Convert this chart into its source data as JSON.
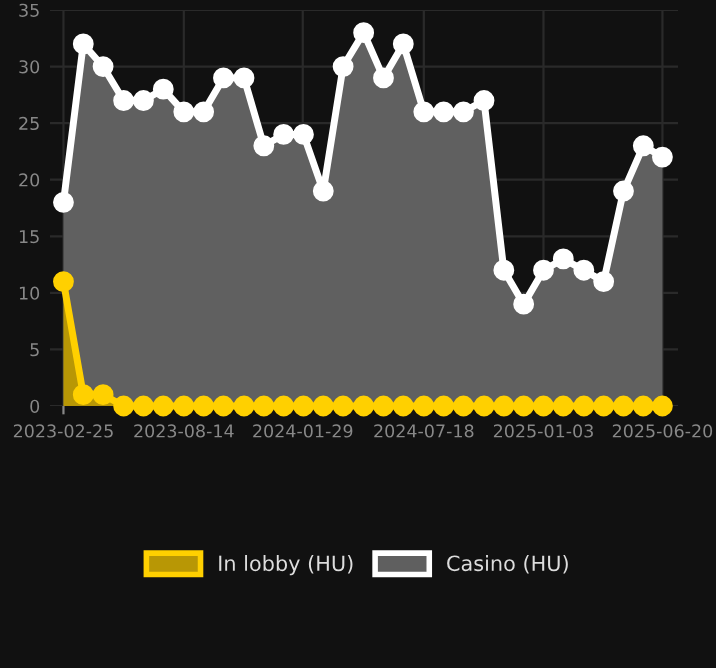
{
  "chart_data": {
    "type": "area",
    "x": [
      "2023-02-25",
      "2023-03-25",
      "2023-04-22",
      "2023-05-21",
      "2023-06-18",
      "2023-07-16",
      "2023-08-14",
      "2023-09-11",
      "2023-10-09",
      "2023-11-07",
      "2023-12-05",
      "2024-01-02",
      "2024-01-30",
      "2024-02-27",
      "2024-03-26",
      "2024-04-24",
      "2024-05-22",
      "2024-06-19",
      "2024-07-18",
      "2024-08-15",
      "2024-09-12",
      "2024-10-11",
      "2024-11-08",
      "2024-12-06",
      "2025-01-03",
      "2025-01-31",
      "2025-03-01",
      "2025-03-29",
      "2025-04-26",
      "2025-05-24",
      "2025-06-20"
    ],
    "series": [
      {
        "name": "In lobby (HU)",
        "color": "#ffd000",
        "values": [
          11,
          1,
          1,
          0,
          0,
          0,
          0,
          0,
          0,
          0,
          0,
          0,
          0,
          0,
          0,
          0,
          0,
          0,
          0,
          0,
          0,
          0,
          0,
          0,
          0,
          0,
          0,
          0,
          0,
          0,
          0
        ]
      },
      {
        "name": "Casino (HU)",
        "color": "#ffffff",
        "values": [
          18,
          32,
          30,
          27,
          27,
          28,
          26,
          26,
          29,
          29,
          23,
          24,
          24,
          19,
          30,
          33,
          29,
          32,
          26,
          26,
          26,
          27,
          12,
          9,
          12,
          13,
          12,
          11,
          19,
          23,
          22
        ]
      }
    ],
    "xlim": [
      "2023-02-06",
      "2025-07-12"
    ],
    "xticks": [
      "2023-02-25",
      "2023-08-14",
      "2024-01-29",
      "2024-07-18",
      "2025-01-03",
      "2025-06-20"
    ],
    "ylim": [
      0,
      35
    ],
    "yticks": [
      0,
      5,
      10,
      15,
      20,
      25,
      30,
      35
    ],
    "grid": true,
    "legend": "bottom",
    "marker": "circle",
    "line_style": "solid"
  }
}
